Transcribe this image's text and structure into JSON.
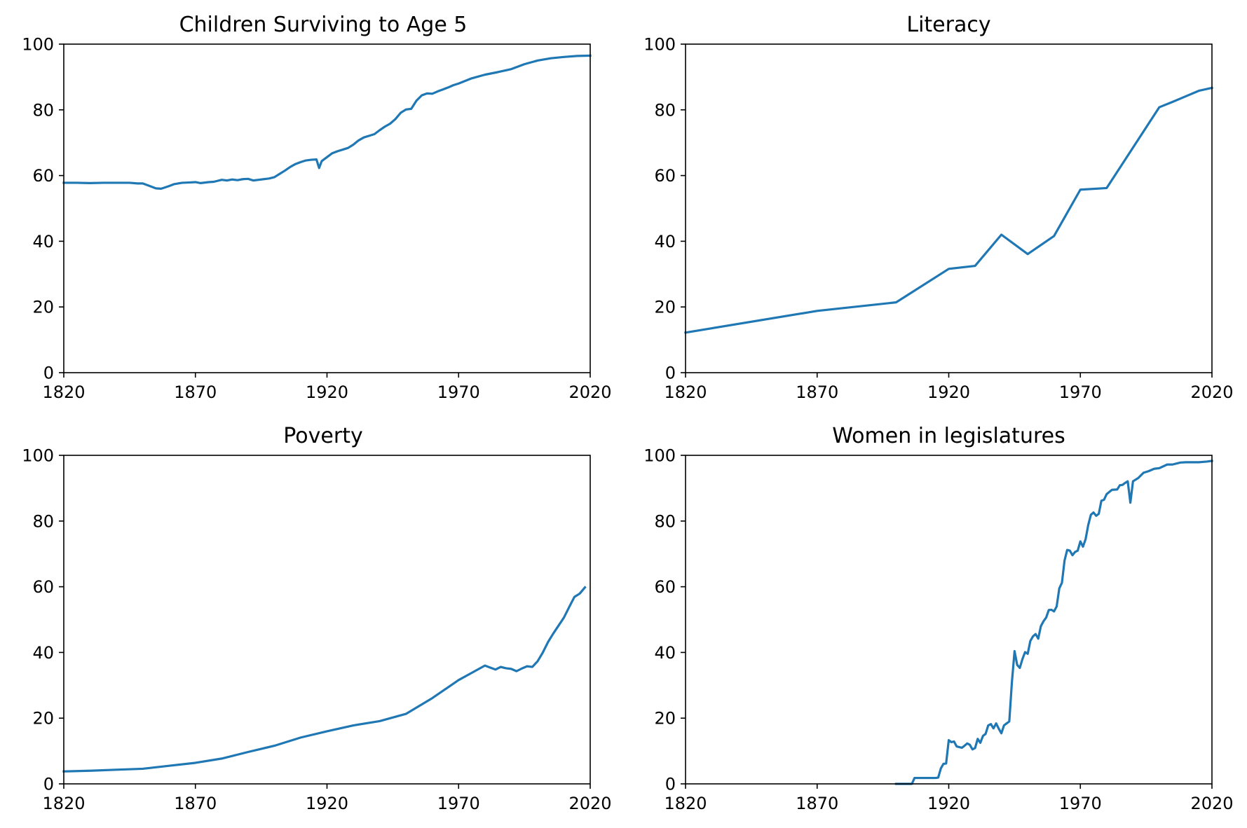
{
  "colors": {
    "series": "#1f77b4",
    "axes": "#000000",
    "background": "#ffffff"
  },
  "chart_data": [
    {
      "type": "line",
      "title": "Children Surviving to Age 5",
      "xlabel": "",
      "ylabel": "",
      "xlim": [
        1820,
        2020
      ],
      "ylim": [
        0,
        100
      ],
      "xticks": [
        "1820",
        "1870",
        "1920",
        "1970",
        "2020"
      ],
      "yticks": [
        "0",
        "20",
        "40",
        "60",
        "80",
        "100"
      ],
      "grid": false,
      "series": [
        {
          "x": [
            1820,
            1825,
            1830,
            1835,
            1840,
            1845,
            1848,
            1850,
            1852,
            1855,
            1857,
            1860,
            1862,
            1865,
            1868,
            1870,
            1872,
            1875,
            1877,
            1880,
            1882,
            1884,
            1886,
            1888,
            1890,
            1892,
            1894,
            1896,
            1898,
            1900,
            1902,
            1904,
            1906,
            1908,
            1910,
            1912,
            1914,
            1916,
            1917,
            1918,
            1920,
            1922,
            1924,
            1926,
            1928,
            1930,
            1932,
            1934,
            1936,
            1938,
            1940,
            1942,
            1944,
            1946,
            1948,
            1950,
            1952,
            1954,
            1956,
            1958,
            1960,
            1962,
            1964,
            1966,
            1968,
            1970,
            1975,
            1980,
            1985,
            1990,
            1995,
            2000,
            2005,
            2010,
            2015,
            2020
          ],
          "y": [
            57.8,
            57.8,
            57.7,
            57.8,
            57.8,
            57.8,
            57.6,
            57.6,
            57.0,
            56.1,
            56.0,
            56.8,
            57.4,
            57.8,
            57.9,
            58.0,
            57.7,
            58.0,
            58.1,
            58.7,
            58.5,
            58.8,
            58.6,
            58.9,
            59.0,
            58.5,
            58.7,
            58.9,
            59.1,
            59.5,
            60.5,
            61.5,
            62.6,
            63.5,
            64.1,
            64.6,
            64.8,
            64.9,
            62.3,
            64.4,
            65.6,
            66.8,
            67.4,
            67.9,
            68.4,
            69.4,
            70.7,
            71.6,
            72.1,
            72.6,
            73.8,
            74.9,
            75.8,
            77.2,
            79.1,
            80.1,
            80.3,
            82.8,
            84.4,
            85.0,
            84.9,
            85.6,
            86.2,
            86.8,
            87.5,
            88.0,
            89.6,
            90.7,
            91.5,
            92.4,
            93.9,
            95.0,
            95.7,
            96.1,
            96.4,
            96.5
          ]
        }
      ]
    },
    {
      "type": "line",
      "title": "Literacy",
      "xlabel": "",
      "ylabel": "",
      "xlim": [
        1820,
        2020
      ],
      "ylim": [
        0,
        100
      ],
      "xticks": [
        "1820",
        "1870",
        "1920",
        "1970",
        "2020"
      ],
      "yticks": [
        "0",
        "20",
        "40",
        "60",
        "80",
        "100"
      ],
      "grid": false,
      "series": [
        {
          "x": [
            1820,
            1870,
            1900,
            1920,
            1930,
            1940,
            1950,
            1960,
            1970,
            1980,
            2000,
            2005,
            2010,
            2015,
            2020
          ],
          "y": [
            12.2,
            18.8,
            21.4,
            31.6,
            32.5,
            42.0,
            36.1,
            41.6,
            55.7,
            56.2,
            80.8,
            82.4,
            84.1,
            85.8,
            86.7
          ]
        }
      ]
    },
    {
      "type": "line",
      "title": "Poverty",
      "xlabel": "",
      "ylabel": "",
      "xlim": [
        1820,
        2020
      ],
      "ylim": [
        0,
        100
      ],
      "xticks": [
        "1820",
        "1870",
        "1920",
        "1970",
        "2020"
      ],
      "yticks": [
        "0",
        "20",
        "40",
        "60",
        "80",
        "100"
      ],
      "grid": false,
      "series": [
        {
          "x": [
            1820,
            1830,
            1840,
            1850,
            1860,
            1870,
            1880,
            1890,
            1900,
            1910,
            1920,
            1930,
            1940,
            1950,
            1960,
            1970,
            1975,
            1980,
            1982,
            1984,
            1986,
            1988,
            1990,
            1992,
            1994,
            1996,
            1998,
            2000,
            2002,
            2004,
            2006,
            2008,
            2010,
            2012,
            2014,
            2016,
            2018
          ],
          "y": [
            3.8,
            4.0,
            4.3,
            4.6,
            5.5,
            6.4,
            7.7,
            9.7,
            11.6,
            14.1,
            16.0,
            17.8,
            19.1,
            21.3,
            26.1,
            31.6,
            33.8,
            36.0,
            35.4,
            34.8,
            35.6,
            35.2,
            35.0,
            34.3,
            35.1,
            35.8,
            35.6,
            37.3,
            40.0,
            43.2,
            45.8,
            48.2,
            50.6,
            53.8,
            56.9,
            57.9,
            59.8
          ]
        }
      ]
    },
    {
      "type": "line",
      "title": "Women in legislatures",
      "xlabel": "",
      "ylabel": "",
      "xlim": [
        1820,
        2020
      ],
      "ylim": [
        0,
        100
      ],
      "xticks": [
        "1820",
        "1870",
        "1920",
        "1970",
        "2020"
      ],
      "yticks": [
        "0",
        "20",
        "40",
        "60",
        "80",
        "100"
      ],
      "grid": false,
      "series": [
        {
          "x": [
            1900,
            1903,
            1906,
            1907,
            1910,
            1913,
            1915,
            1916,
            1917,
            1918,
            1919,
            1920,
            1921,
            1922,
            1923,
            1925,
            1926,
            1927,
            1928,
            1929,
            1930,
            1931,
            1932,
            1933,
            1934,
            1935,
            1936,
            1937,
            1938,
            1939,
            1940,
            1941,
            1942,
            1943,
            1944,
            1945,
            1946,
            1947,
            1948,
            1949,
            1950,
            1951,
            1952,
            1953,
            1954,
            1955,
            1956,
            1957,
            1958,
            1959,
            1960,
            1961,
            1962,
            1963,
            1964,
            1965,
            1966,
            1967,
            1968,
            1969,
            1970,
            1971,
            1972,
            1973,
            1974,
            1975,
            1976,
            1977,
            1978,
            1979,
            1980,
            1982,
            1984,
            1985,
            1986,
            1987,
            1988,
            1989,
            1990,
            1992,
            1994,
            1996,
            1998,
            2000,
            2003,
            2005,
            2008,
            2010,
            2012,
            2015,
            2018,
            2020
          ],
          "y": [
            0,
            0,
            0,
            1.8,
            1.8,
            1.8,
            1.8,
            1.9,
            4.7,
            6.1,
            6.2,
            13.3,
            12.7,
            12.9,
            11.4,
            11.0,
            11.6,
            12.3,
            11.9,
            10.5,
            10.9,
            13.7,
            12.5,
            14.6,
            15.2,
            17.8,
            18.2,
            16.9,
            18.4,
            16.8,
            15.4,
            17.8,
            18.4,
            19.0,
            31.0,
            40.4,
            36.2,
            35.3,
            38.0,
            40.1,
            39.6,
            43.5,
            44.9,
            45.6,
            44.2,
            48.0,
            49.5,
            50.6,
            52.9,
            53.0,
            52.5,
            54.0,
            59.5,
            61.2,
            68.0,
            71.2,
            71.0,
            69.6,
            70.6,
            71.0,
            73.8,
            72.2,
            74.5,
            78.8,
            81.9,
            82.6,
            81.6,
            82.2,
            86.2,
            86.5,
            88.2,
            89.5,
            89.6,
            90.9,
            91.0,
            91.6,
            92.1,
            85.6,
            92.1,
            93.1,
            94.7,
            95.2,
            95.9,
            96.1,
            97.2,
            97.2,
            97.8,
            97.9,
            97.9,
            97.9,
            98.1,
            98.3
          ]
        }
      ]
    }
  ]
}
